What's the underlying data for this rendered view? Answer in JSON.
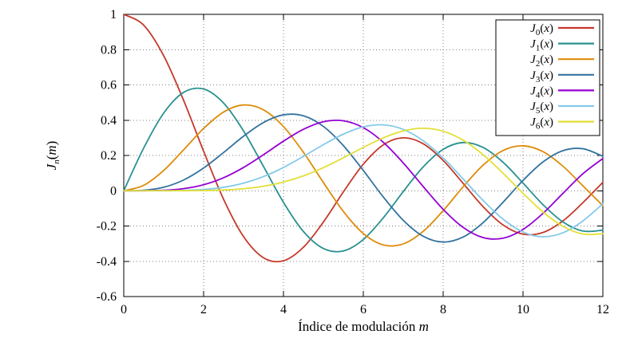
{
  "page": {
    "background": "#ffffff"
  },
  "chart_data": {
    "type": "line",
    "title": "",
    "xlabel": "Índice de modulación m",
    "ylabel": "J_n(m)",
    "xlim": [
      0,
      12
    ],
    "ylim": [
      -0.6,
      1.0
    ],
    "xticks": [
      0,
      2,
      4,
      6,
      8,
      10,
      12
    ],
    "xtick_labels": [
      "0",
      "2",
      "4",
      "6",
      "8",
      "10",
      "12"
    ],
    "yticks": [
      1,
      0.8,
      0.6,
      0.4,
      0.2,
      0,
      -0.2,
      -0.4,
      -0.6
    ],
    "ytick_labels": [
      "1",
      "0.8",
      "0.6",
      "0.4",
      "0.2",
      "0",
      "-0.2",
      "-0.4",
      "-0.6"
    ],
    "grid": true,
    "legend_position": "top-right",
    "x": [
      0,
      0.5,
      1,
      1.5,
      2,
      2.5,
      3,
      3.5,
      4,
      4.5,
      5,
      5.5,
      6,
      6.5,
      7,
      7.5,
      8,
      8.5,
      9,
      9.5,
      10,
      10.5,
      11,
      11.5,
      12
    ],
    "series": [
      {
        "name": "J_0(x)",
        "color": "#c5392b",
        "values": [
          1,
          0.9385,
          0.7652,
          0.5118,
          0.2239,
          -0.0484,
          -0.2601,
          -0.3801,
          -0.3971,
          -0.3205,
          -0.1776,
          -0.0068,
          0.1506,
          0.2601,
          0.3001,
          0.2663,
          0.1717,
          0.0419,
          -0.0903,
          -0.1939,
          -0.2459,
          -0.2366,
          -0.1712,
          -0.0677,
          0.0477
        ]
      },
      {
        "name": "J_1(x)",
        "color": "#2a9090",
        "values": [
          0,
          0.2423,
          0.4401,
          0.5579,
          0.5767,
          0.4971,
          0.3391,
          0.1374,
          -0.066,
          -0.2311,
          -0.3276,
          -0.3414,
          -0.2767,
          -0.1538,
          -0.0047,
          0.1352,
          0.2346,
          0.2731,
          0.2453,
          0.1613,
          0.0435,
          -0.0789,
          -0.1768,
          -0.2284,
          -0.2234
        ]
      },
      {
        "name": "J_2(x)",
        "color": "#dd8c0a",
        "values": [
          0,
          0.0306,
          0.1149,
          0.2321,
          0.3528,
          0.4461,
          0.4861,
          0.4586,
          0.3641,
          0.2178,
          0.0466,
          -0.1173,
          -0.2429,
          -0.3074,
          -0.3014,
          -0.2303,
          -0.113,
          0.0223,
          0.1448,
          0.2279,
          0.2546,
          0.2216,
          0.139,
          0.0279,
          -0.0849
        ]
      },
      {
        "name": "J_3(x)",
        "color": "#33739f",
        "values": [
          0,
          0.0026,
          0.0196,
          0.061,
          0.1289,
          0.2166,
          0.3091,
          0.3868,
          0.4302,
          0.4247,
          0.3648,
          0.2561,
          0.1148,
          -0.0353,
          -0.1676,
          -0.2581,
          -0.2911,
          -0.2626,
          -0.1809,
          -0.0653,
          0.0584,
          0.1633,
          0.2273,
          0.2381,
          0.1951
        ]
      },
      {
        "name": "J_4(x)",
        "color": "#9400d3",
        "values": [
          0,
          0.0002,
          0.0025,
          0.0118,
          0.034,
          0.0738,
          0.132,
          0.2044,
          0.2811,
          0.3484,
          0.3912,
          0.3967,
          0.3576,
          0.2748,
          0.1578,
          0.0238,
          -0.1054,
          -0.2077,
          -0.2655,
          -0.2691,
          -0.2196,
          -0.1283,
          -0.015,
          0.0963,
          0.1825
        ]
      },
      {
        "name": "J_5(x)",
        "color": "#84c9e8",
        "values": [
          0,
          0.0,
          0.0002,
          0.0018,
          0.007,
          0.0195,
          0.043,
          0.0804,
          0.1321,
          0.1947,
          0.2611,
          0.3209,
          0.3621,
          0.3736,
          0.3479,
          0.2833,
          0.1858,
          0.0671,
          -0.055,
          -0.1613,
          -0.2341,
          -0.2611,
          -0.2383,
          -0.1711,
          -0.0735
        ]
      },
      {
        "name": "J_6(x)",
        "color": "#e2df35",
        "values": [
          0,
          0.0,
          0.0,
          0.0002,
          0.0012,
          0.0042,
          0.0114,
          0.0254,
          0.0491,
          0.0843,
          0.131,
          0.1868,
          0.2458,
          0.2999,
          0.3392,
          0.3541,
          0.3376,
          0.2867,
          0.2043,
          0.0993,
          -0.0145,
          -0.1203,
          -0.2016,
          -0.2453,
          -0.2437
        ]
      }
    ]
  }
}
